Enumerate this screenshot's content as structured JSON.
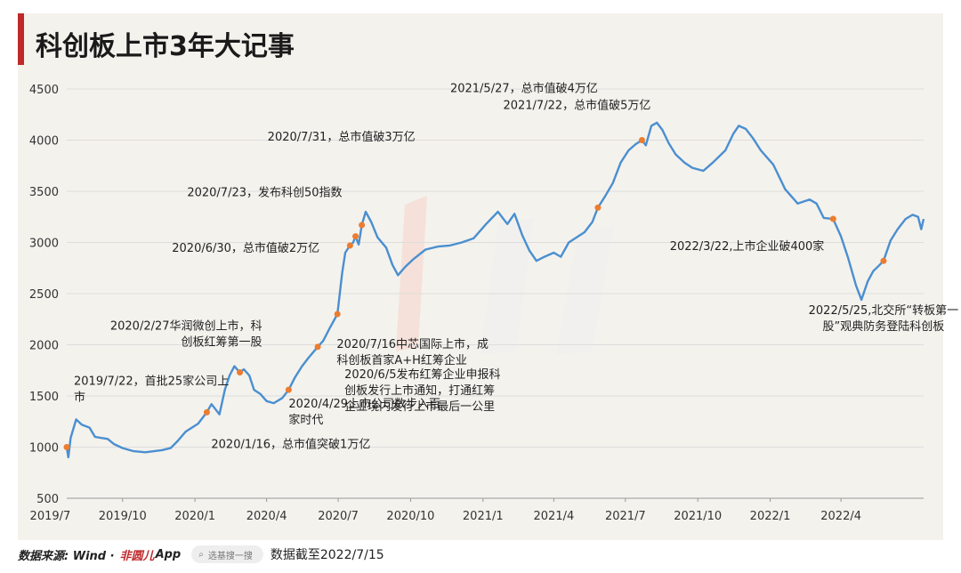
{
  "header": {
    "title": "科创板上市3年大记事"
  },
  "footer": {
    "source_label": "数据来源: Wind ·",
    "app_brand": "非圆儿",
    "app_suffix": "App",
    "search_placeholder": "选基搜一搜",
    "data_cutoff": "数据截至2022/7/15"
  },
  "colors": {
    "line": "#4a8fd0",
    "marker": "#ec7c30",
    "grid": "#dddddd",
    "accent": "#c0292b"
  },
  "chart_data": {
    "type": "line",
    "title": "科创板上市3年大记事",
    "xlabel": "",
    "ylabel": "",
    "ylim": [
      500,
      4500
    ],
    "yticks": [
      500,
      1000,
      1500,
      2000,
      2500,
      3000,
      3500,
      4000,
      4500
    ],
    "xticks": [
      "2019/7",
      "2019/10",
      "2020/1",
      "2020/4",
      "2020/7",
      "2020/10",
      "2021/1",
      "2021/4",
      "2021/7",
      "2021/10",
      "2022/1",
      "2022/4"
    ],
    "grid": true,
    "x_start": "2019/7/22",
    "x_end": "2022/7/15",
    "series": [
      {
        "name": "",
        "points": [
          [
            "2019/7/22",
            1000
          ],
          [
            "2019/7/24",
            900
          ],
          [
            "2019/7/27",
            1090
          ],
          [
            "2019/8/3",
            1270
          ],
          [
            "2019/8/10",
            1220
          ],
          [
            "2019/8/20",
            1190
          ],
          [
            "2019/8/27",
            1100
          ],
          [
            "2019/9/3",
            1090
          ],
          [
            "2019/9/12",
            1080
          ],
          [
            "2019/9/20",
            1030
          ],
          [
            "2019/10/1",
            990
          ],
          [
            "2019/10/15",
            960
          ],
          [
            "2019/10/30",
            950
          ],
          [
            "2019/11/10",
            960
          ],
          [
            "2019/11/20",
            970
          ],
          [
            "2019/12/1",
            990
          ],
          [
            "2019/12/10",
            1060
          ],
          [
            "2019/12/20",
            1150
          ],
          [
            "2020/1/5",
            1230
          ],
          [
            "2020/1/16",
            1340
          ],
          [
            "2020/1/22",
            1420
          ],
          [
            "2020/2/1",
            1320
          ],
          [
            "2020/2/8",
            1560
          ],
          [
            "2020/2/14",
            1700
          ],
          [
            "2020/2/20",
            1790
          ],
          [
            "2020/2/27",
            1730
          ],
          [
            "2020/3/3",
            1760
          ],
          [
            "2020/3/10",
            1700
          ],
          [
            "2020/3/16",
            1560
          ],
          [
            "2020/3/24",
            1520
          ],
          [
            "2020/4/1",
            1450
          ],
          [
            "2020/4/10",
            1430
          ],
          [
            "2020/4/21",
            1480
          ],
          [
            "2020/4/29",
            1560
          ],
          [
            "2020/5/7",
            1680
          ],
          [
            "2020/5/16",
            1790
          ],
          [
            "2020/5/24",
            1870
          ],
          [
            "2020/6/5",
            1980
          ],
          [
            "2020/6/12",
            2040
          ],
          [
            "2020/6/20",
            2160
          ],
          [
            "2020/6/30",
            2300
          ],
          [
            "2020/7/6",
            2700
          ],
          [
            "2020/7/10",
            2900
          ],
          [
            "2020/7/16",
            2970
          ],
          [
            "2020/7/20",
            3000
          ],
          [
            "2020/7/23",
            3060
          ],
          [
            "2020/7/27",
            2980
          ],
          [
            "2020/7/31",
            3170
          ],
          [
            "2020/8/5",
            3300
          ],
          [
            "2020/8/12",
            3200
          ],
          [
            "2020/8/20",
            3050
          ],
          [
            "2020/8/31",
            2950
          ],
          [
            "2020/9/8",
            2780
          ],
          [
            "2020/9/15",
            2680
          ],
          [
            "2020/9/24",
            2760
          ],
          [
            "2020/10/5",
            2840
          ],
          [
            "2020/10/20",
            2930
          ],
          [
            "2020/11/5",
            2960
          ],
          [
            "2020/11/20",
            2970
          ],
          [
            "2020/12/5",
            3000
          ],
          [
            "2020/12/20",
            3040
          ],
          [
            "2021/1/5",
            3180
          ],
          [
            "2021/1/20",
            3300
          ],
          [
            "2021/2/1",
            3180
          ],
          [
            "2021/2/10",
            3280
          ],
          [
            "2021/2/20",
            3070
          ],
          [
            "2021/3/1",
            2920
          ],
          [
            "2021/3/10",
            2820
          ],
          [
            "2021/3/20",
            2860
          ],
          [
            "2021/4/1",
            2900
          ],
          [
            "2021/4/10",
            2860
          ],
          [
            "2021/4/20",
            3000
          ],
          [
            "2021/5/10",
            3100
          ],
          [
            "2021/5/20",
            3200
          ],
          [
            "2021/5/27",
            3340
          ],
          [
            "2021/6/5",
            3450
          ],
          [
            "2021/6/15",
            3580
          ],
          [
            "2021/6/25",
            3780
          ],
          [
            "2021/7/5",
            3900
          ],
          [
            "2021/7/14",
            3960
          ],
          [
            "2021/7/22",
            4000
          ],
          [
            "2021/7/27",
            3950
          ],
          [
            "2021/8/3",
            4140
          ],
          [
            "2021/8/10",
            4170
          ],
          [
            "2021/8/17",
            4100
          ],
          [
            "2021/8/25",
            3970
          ],
          [
            "2021/9/3",
            3860
          ],
          [
            "2021/9/14",
            3780
          ],
          [
            "2021/9/24",
            3730
          ],
          [
            "2021/10/8",
            3700
          ],
          [
            "2021/10/20",
            3780
          ],
          [
            "2021/11/5",
            3900
          ],
          [
            "2021/11/15",
            4060
          ],
          [
            "2021/11/22",
            4140
          ],
          [
            "2021/12/1",
            4110
          ],
          [
            "2021/12/10",
            4020
          ],
          [
            "2021/12/20",
            3900
          ],
          [
            "2022/1/5",
            3760
          ],
          [
            "2022/1/20",
            3520
          ],
          [
            "2022/2/5",
            3380
          ],
          [
            "2022/2/20",
            3420
          ],
          [
            "2022/3/1",
            3380
          ],
          [
            "2022/3/10",
            3240
          ],
          [
            "2022/3/22",
            3230
          ],
          [
            "2022/4/1",
            3060
          ],
          [
            "2022/4/10",
            2850
          ],
          [
            "2022/4/20",
            2580
          ],
          [
            "2022/4/27",
            2440
          ],
          [
            "2022/5/5",
            2620
          ],
          [
            "2022/5/12",
            2720
          ],
          [
            "2022/5/20",
            2780
          ],
          [
            "2022/5/25",
            2820
          ],
          [
            "2022/6/3",
            3020
          ],
          [
            "2022/6/12",
            3130
          ],
          [
            "2022/6/22",
            3230
          ],
          [
            "2022/7/1",
            3270
          ],
          [
            "2022/7/8",
            3250
          ],
          [
            "2022/7/12",
            3130
          ],
          [
            "2022/7/15",
            3230
          ]
        ]
      }
    ],
    "annotations": [
      {
        "date": "2019/7/22",
        "value": 1000,
        "lines": [
          "2019/7/22，首批25家公司上",
          "市"
        ],
        "anchor": "start"
      },
      {
        "date": "2020/1/16",
        "value": 1340,
        "lines": [
          "2020/1/16，总市值突破1万亿"
        ],
        "anchor": "start"
      },
      {
        "date": "2020/2/27",
        "value": 1730,
        "lines": [
          "2020/2/27华润微创上市，科",
          "创板红筹第一股"
        ],
        "anchor": "end"
      },
      {
        "date": "2020/4/29",
        "value": 1560,
        "lines": [
          "2020/4/29上市公司数步入百",
          "家时代"
        ],
        "anchor": "start"
      },
      {
        "date": "2020/6/5",
        "value": 1980,
        "lines": [
          "2020/6/5发布红筹企业申报科",
          "创板发行上市通知，打通红筹",
          "企业境内发行上市最后一公里"
        ],
        "anchor": "start"
      },
      {
        "date": "2020/6/30",
        "value": 2300,
        "lines": [
          "2020/6/30，总市值破2万亿"
        ],
        "anchor": "end"
      },
      {
        "date": "2020/7/16",
        "value": 2970,
        "lines": [
          "2020/7/16中芯国际上市，成",
          "科创板首家A+H红筹企业"
        ],
        "anchor": "start"
      },
      {
        "date": "2020/7/23",
        "value": 3060,
        "lines": [
          "2020/7/23，发布科创50指数"
        ],
        "anchor": "end"
      },
      {
        "date": "2020/7/31",
        "value": 3170,
        "lines": [
          "2020/7/31，总市值破3万亿"
        ],
        "anchor": "end"
      },
      {
        "date": "2021/5/27",
        "value": 3340,
        "lines": [
          "2021/5/27，总市值破4万亿"
        ],
        "anchor": "end"
      },
      {
        "date": "2021/7/22",
        "value": 4000,
        "lines": [
          "2021/7/22，总市值破5万亿"
        ],
        "anchor": "end"
      },
      {
        "date": "2022/3/22",
        "value": 3230,
        "lines": [
          "2022/3/22,上市企业破400家"
        ],
        "anchor": "end"
      },
      {
        "date": "2022/5/25",
        "value": 2820,
        "lines": [
          "2022/5/25,北交所“转板第一",
          "股”观典防务登陆科创板"
        ],
        "anchor": "middle"
      }
    ]
  }
}
